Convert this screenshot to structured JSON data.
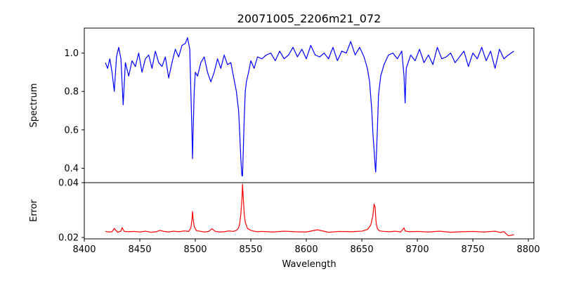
{
  "chart_data": {
    "type": "line",
    "title": "20071005_2206m21_072",
    "xlabel": "Wavelength",
    "xlim": [
      8400,
      8805
    ],
    "xticks": [
      8400,
      8450,
      8500,
      8550,
      8600,
      8650,
      8700,
      8750,
      8800
    ],
    "grid": false,
    "panels": [
      {
        "name": "spectrum",
        "ylabel": "Spectrum",
        "ylim": [
          0.325,
          1.13
        ],
        "yticks": [
          0.4,
          0.6,
          0.8,
          1.0
        ],
        "ytick_labels": [
          "0.4",
          "0.6",
          "0.8",
          "1.0"
        ],
        "series": [
          {
            "color": "#0000ff",
            "x": [
              8419,
              8421,
              8423,
              8425,
              8427,
              8429,
              8431,
              8433,
              8435,
              8437,
              8440,
              8443,
              8446,
              8449,
              8452,
              8455,
              8458,
              8461,
              8464,
              8467,
              8470,
              8473,
              8476,
              8479,
              8482,
              8485,
              8488,
              8491,
              8493,
              8495,
              8496,
              8497,
              8497.5,
              8498,
              8499,
              8500,
              8502,
              8505,
              8508,
              8511,
              8514,
              8517,
              8520,
              8523,
              8526,
              8529,
              8532,
              8535,
              8537,
              8539,
              8540,
              8541,
              8542,
              8542.5,
              8543,
              8544,
              8545,
              8546,
              8548,
              8550,
              8553,
              8556,
              8560,
              8564,
              8568,
              8572,
              8576,
              8580,
              8584,
              8588,
              8592,
              8596,
              8600,
              8604,
              8608,
              8612,
              8616,
              8620,
              8624,
              8628,
              8632,
              8636,
              8640,
              8644,
              8648,
              8652,
              8655,
              8657,
              8659,
              8660,
              8661,
              8662,
              8662.5,
              8663,
              8664,
              8665,
              8667,
              8670,
              8674,
              8678,
              8682,
              8686,
              8688,
              8689,
              8690,
              8694,
              8698,
              8702,
              8706,
              8710,
              8714,
              8718,
              8722,
              8726,
              8730,
              8734,
              8738,
              8742,
              8746,
              8750,
              8754,
              8758,
              8762,
              8766,
              8770,
              8774,
              8778,
              8782,
              8787
            ],
            "y": [
              0.95,
              0.92,
              0.97,
              0.9,
              0.8,
              0.98,
              1.03,
              0.97,
              0.73,
              0.95,
              0.88,
              0.96,
              0.93,
              1.0,
              0.9,
              0.97,
              0.99,
              0.92,
              1.01,
              0.95,
              0.93,
              0.98,
              0.87,
              0.95,
              1.02,
              0.98,
              1.04,
              1.05,
              1.08,
              1.02,
              0.8,
              0.58,
              0.45,
              0.58,
              0.8,
              0.9,
              0.88,
              0.95,
              0.98,
              0.9,
              0.85,
              0.9,
              0.97,
              0.92,
              0.99,
              0.94,
              0.95,
              0.86,
              0.8,
              0.7,
              0.58,
              0.45,
              0.36,
              0.36,
              0.45,
              0.65,
              0.8,
              0.85,
              0.9,
              0.96,
              0.92,
              0.98,
              0.97,
              0.99,
              1.0,
              0.96,
              1.01,
              0.97,
              0.99,
              1.03,
              0.98,
              1.02,
              0.97,
              1.04,
              0.99,
              0.98,
              1.0,
              0.97,
              1.03,
              0.96,
              1.01,
              1.0,
              1.06,
              0.99,
              1.03,
              0.98,
              0.92,
              0.85,
              0.7,
              0.58,
              0.5,
              0.41,
              0.38,
              0.45,
              0.6,
              0.78,
              0.88,
              0.94,
              0.99,
              1.0,
              0.97,
              1.01,
              0.88,
              0.74,
              0.92,
              0.99,
              0.96,
              1.02,
              0.95,
              0.99,
              0.94,
              1.03,
              0.97,
              0.98,
              1.0,
              0.95,
              0.98,
              1.01,
              0.93,
              1.0,
              0.97,
              1.03,
              0.96,
              1.01,
              0.92,
              1.02,
              0.97,
              0.99,
              1.01
            ]
          }
        ]
      },
      {
        "name": "error",
        "ylabel": "Error",
        "ylim": [
          0.0195,
          0.04
        ],
        "yticks": [
          0.02,
          0.04
        ],
        "ytick_labels": [
          "0.02",
          "0.04"
        ],
        "series": [
          {
            "color": "#ff0000",
            "x": [
              8419,
              8422,
              8425,
              8427,
              8430,
              8433,
              8434,
              8436,
              8440,
              8445,
              8450,
              8455,
              8460,
              8465,
              8468,
              8472,
              8476,
              8480,
              8485,
              8490,
              8494,
              8496,
              8497,
              8497.5,
              8498,
              8499,
              8501,
              8504,
              8508,
              8512,
              8515,
              8518,
              8522,
              8526,
              8530,
              8534,
              8537,
              8539,
              8540,
              8541,
              8542,
              8542.5,
              8543,
              8544,
              8545,
              8547,
              8550,
              8555,
              8560,
              8570,
              8580,
              8590,
              8600,
              8610,
              8620,
              8630,
              8640,
              8650,
              8655,
              8658,
              8660,
              8661,
              8662,
              8662.5,
              8663,
              8664,
              8666,
              8670,
              8675,
              8680,
              8685,
              8688,
              8689,
              8692,
              8700,
              8710,
              8720,
              8730,
              8740,
              8750,
              8760,
              8770,
              8775,
              8778,
              8782,
              8787
            ],
            "y": [
              0.0222,
              0.022,
              0.0221,
              0.0233,
              0.0219,
              0.0223,
              0.0236,
              0.0222,
              0.0221,
              0.0222,
              0.022,
              0.0223,
              0.0219,
              0.0221,
              0.0226,
              0.0222,
              0.022,
              0.0223,
              0.0221,
              0.0224,
              0.0222,
              0.0235,
              0.0265,
              0.0295,
              0.027,
              0.024,
              0.0225,
              0.0223,
              0.022,
              0.0222,
              0.0232,
              0.0222,
              0.022,
              0.0221,
              0.0224,
              0.0222,
              0.0226,
              0.0235,
              0.025,
              0.0285,
              0.034,
              0.0394,
              0.036,
              0.029,
              0.0255,
              0.0233,
              0.0226,
              0.0221,
              0.0222,
              0.022,
              0.0223,
              0.0221,
              0.022,
              0.0228,
              0.0219,
              0.0222,
              0.0221,
              0.0223,
              0.0229,
              0.0245,
              0.028,
              0.0322,
              0.031,
              0.0275,
              0.025,
              0.0232,
              0.0224,
              0.0222,
              0.0221,
              0.0223,
              0.022,
              0.0235,
              0.0224,
              0.0221,
              0.0222,
              0.022,
              0.0223,
              0.0219,
              0.0221,
              0.0222,
              0.022,
              0.0223,
              0.0218,
              0.0221,
              0.0206,
              0.021
            ]
          }
        ]
      }
    ]
  }
}
